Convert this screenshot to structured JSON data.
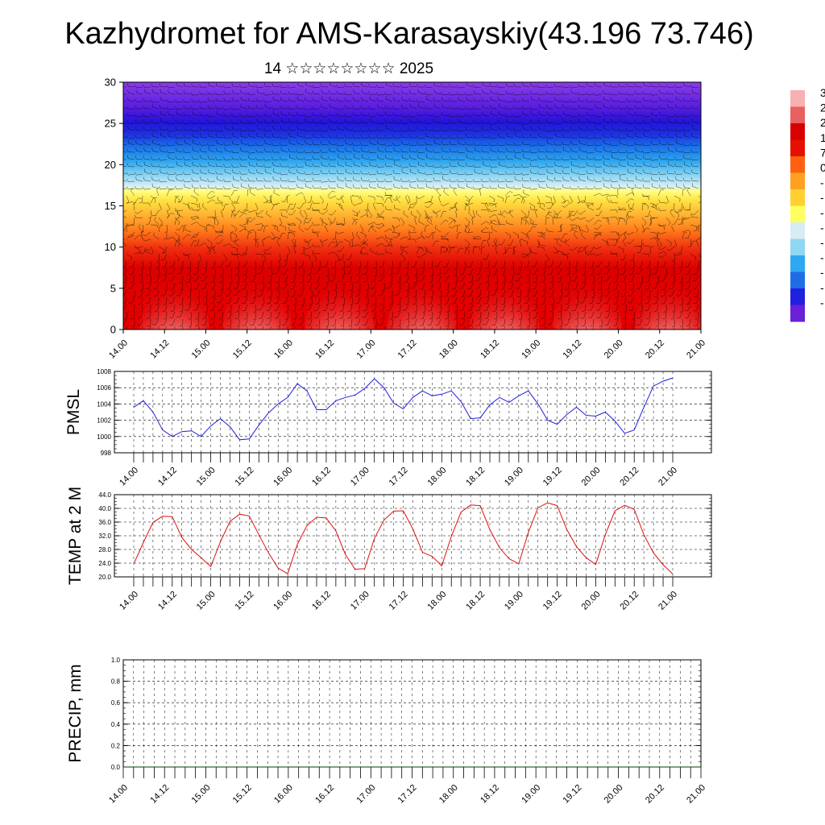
{
  "title": "Kazhydromet for AMS-Karasayskiy(43.196 73.746)",
  "subtitle": "14 ☆☆☆☆☆☆☆☆ 2025",
  "time_labels": [
    "14.00",
    "14.12",
    "15.00",
    "15.12",
    "16.00",
    "16.12",
    "17.00",
    "17.12",
    "18.00",
    "18.12",
    "19.00",
    "19.12",
    "20.00",
    "20.12",
    "21.00"
  ],
  "colorbar_labels": [
    "3",
    "2",
    "2",
    "1",
    "7",
    "0",
    "-",
    "-",
    "-",
    "-",
    "-",
    "-",
    "-",
    "-",
    "-"
  ],
  "colors": {
    "pmsl_line": "#1f1fdc",
    "temp_line": "#e01010",
    "precip_line": "#004000",
    "axis": "#000000"
  },
  "chart_data": [
    {
      "type": "heatmap",
      "name": "vertical cross-section",
      "yticks": [
        0,
        5,
        10,
        15,
        20,
        25,
        30
      ],
      "ylim": [
        0,
        30
      ],
      "color_scale": [
        "#6a1fd8",
        "#2020e0",
        "#1e6de6",
        "#2ea8f0",
        "#8fd8f3",
        "#d7ecf3",
        "#ffff60",
        "#ffd030",
        "#ffa020",
        "#ff6010",
        "#e51000",
        "#d80000",
        "#e86060",
        "#f8b0b0"
      ],
      "level_values": {
        "description": "cold at top, warm near bottom with daytime warm bulges"
      },
      "wind_barbs": true
    },
    {
      "type": "line",
      "ylabel": "PMSL",
      "ylim": [
        998,
        1008
      ],
      "yticks": [
        "998",
        "1000",
        "1002",
        "1004",
        "1006",
        "1008"
      ],
      "grid": true,
      "x_step_hours": 3,
      "values": [
        1003.6,
        1004.4,
        1003.0,
        1000.8,
        1000.0,
        1000.6,
        1000.7,
        1000.0,
        1001.3,
        1002.2,
        1001.2,
        999.6,
        999.7,
        1001.4,
        1002.9,
        1004.0,
        1004.8,
        1006.5,
        1005.6,
        1003.3,
        1003.3,
        1004.4,
        1004.8,
        1005.1,
        1005.9,
        1007.1,
        1006.0,
        1004.1,
        1003.4,
        1004.8,
        1005.6,
        1005.0,
        1005.2,
        1005.6,
        1004.3,
        1002.2,
        1002.3,
        1003.9,
        1004.8,
        1004.2,
        1005.0,
        1005.6,
        1004.0,
        1002.0,
        1001.5,
        1002.7,
        1003.6,
        1002.6,
        1002.5,
        1003.0,
        1001.9,
        1000.4,
        1000.8,
        1003.6,
        1006.2,
        1006.8,
        1007.2
      ]
    },
    {
      "type": "line",
      "ylabel": "TEMP at 2 M",
      "ylim": [
        20,
        44
      ],
      "yticks": [
        "20.0",
        "24.0",
        "28.0",
        "32.0",
        "36.0",
        "40.0",
        "44.0"
      ],
      "grid": true,
      "x_step_hours": 3,
      "values": [
        23.8,
        30.0,
        35.9,
        37.7,
        37.6,
        31.5,
        28.0,
        25.6,
        23.0,
        30.2,
        36.2,
        38.3,
        37.8,
        32.3,
        27.0,
        22.6,
        20.9,
        29.5,
        35.0,
        37.4,
        37.2,
        33.4,
        26.5,
        22.2,
        22.4,
        31.2,
        36.6,
        39.2,
        39.3,
        34.0,
        27.2,
        26.0,
        23.2,
        31.8,
        38.9,
        41.0,
        40.8,
        33.8,
        28.5,
        25.3,
        23.8,
        33.0,
        40.2,
        41.6,
        40.8,
        33.8,
        28.8,
        25.6,
        23.6,
        32.4,
        39.3,
        40.9,
        39.7,
        32.3,
        27.0,
        23.5,
        20.9
      ]
    },
    {
      "type": "line",
      "ylabel": "PRECIP, mm",
      "ylim": [
        0,
        1
      ],
      "yticks": [
        "0.0",
        "0.2",
        "0.4",
        "0.6",
        "0.8",
        "1.0"
      ],
      "grid": true,
      "values": [
        0,
        0,
        0,
        0,
        0,
        0,
        0,
        0,
        0,
        0,
        0,
        0,
        0,
        0,
        0,
        0,
        0,
        0,
        0,
        0,
        0,
        0,
        0,
        0,
        0,
        0,
        0,
        0,
        0,
        0,
        0,
        0,
        0,
        0,
        0,
        0,
        0,
        0,
        0,
        0,
        0,
        0,
        0,
        0,
        0,
        0,
        0,
        0,
        0,
        0,
        0,
        0,
        0,
        0,
        0,
        0,
        0
      ]
    }
  ]
}
